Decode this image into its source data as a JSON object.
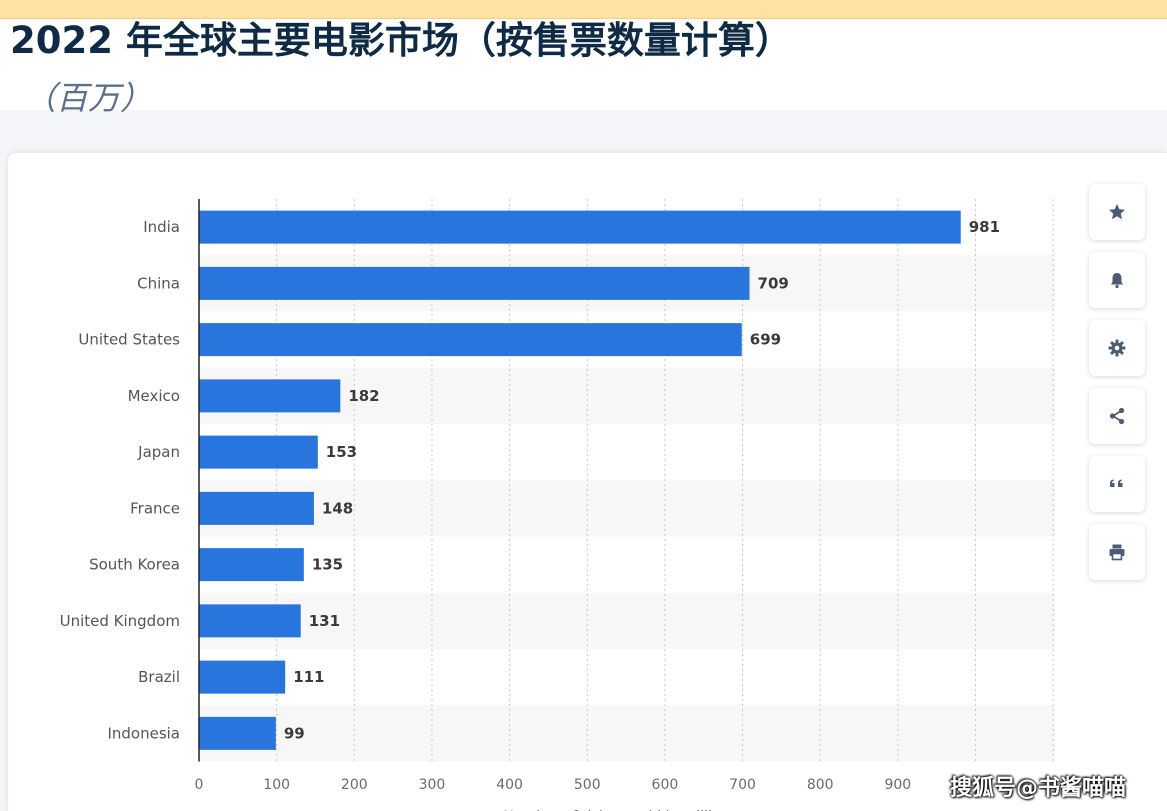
{
  "page": {
    "title": "2022 年全球主要电影市场（按售票数量计算）",
    "subtitle": "（百万）"
  },
  "toolbar": {
    "buttons": [
      "star-icon",
      "bell-icon",
      "gear-icon",
      "share-icon",
      "quote-icon",
      "print-icon"
    ]
  },
  "watermark": "搜狐号@书酱喵喵",
  "colors": {
    "bar": "#2876dd",
    "title": "#0f2a45",
    "subtitle": "#5b708a",
    "tick_label": "#6b6b6b",
    "category_label": "#555555",
    "value_label": "#3a3a3a",
    "row_stripe": "#f7f7f7"
  },
  "chart_data": {
    "type": "bar",
    "orientation": "horizontal",
    "categories": [
      "India",
      "China",
      "United States",
      "Mexico",
      "Japan",
      "France",
      "South Korea",
      "United Kingdom",
      "Brazil",
      "Indonesia"
    ],
    "values": [
      981,
      709,
      699,
      182,
      153,
      148,
      135,
      131,
      111,
      99
    ],
    "xlim": [
      0,
      1100
    ],
    "xticks": [
      0,
      100,
      200,
      300,
      400,
      500,
      600,
      700,
      800,
      900
    ],
    "xlabel": "Number of tickets sold in millions",
    "grid": true,
    "data_labels": true
  }
}
